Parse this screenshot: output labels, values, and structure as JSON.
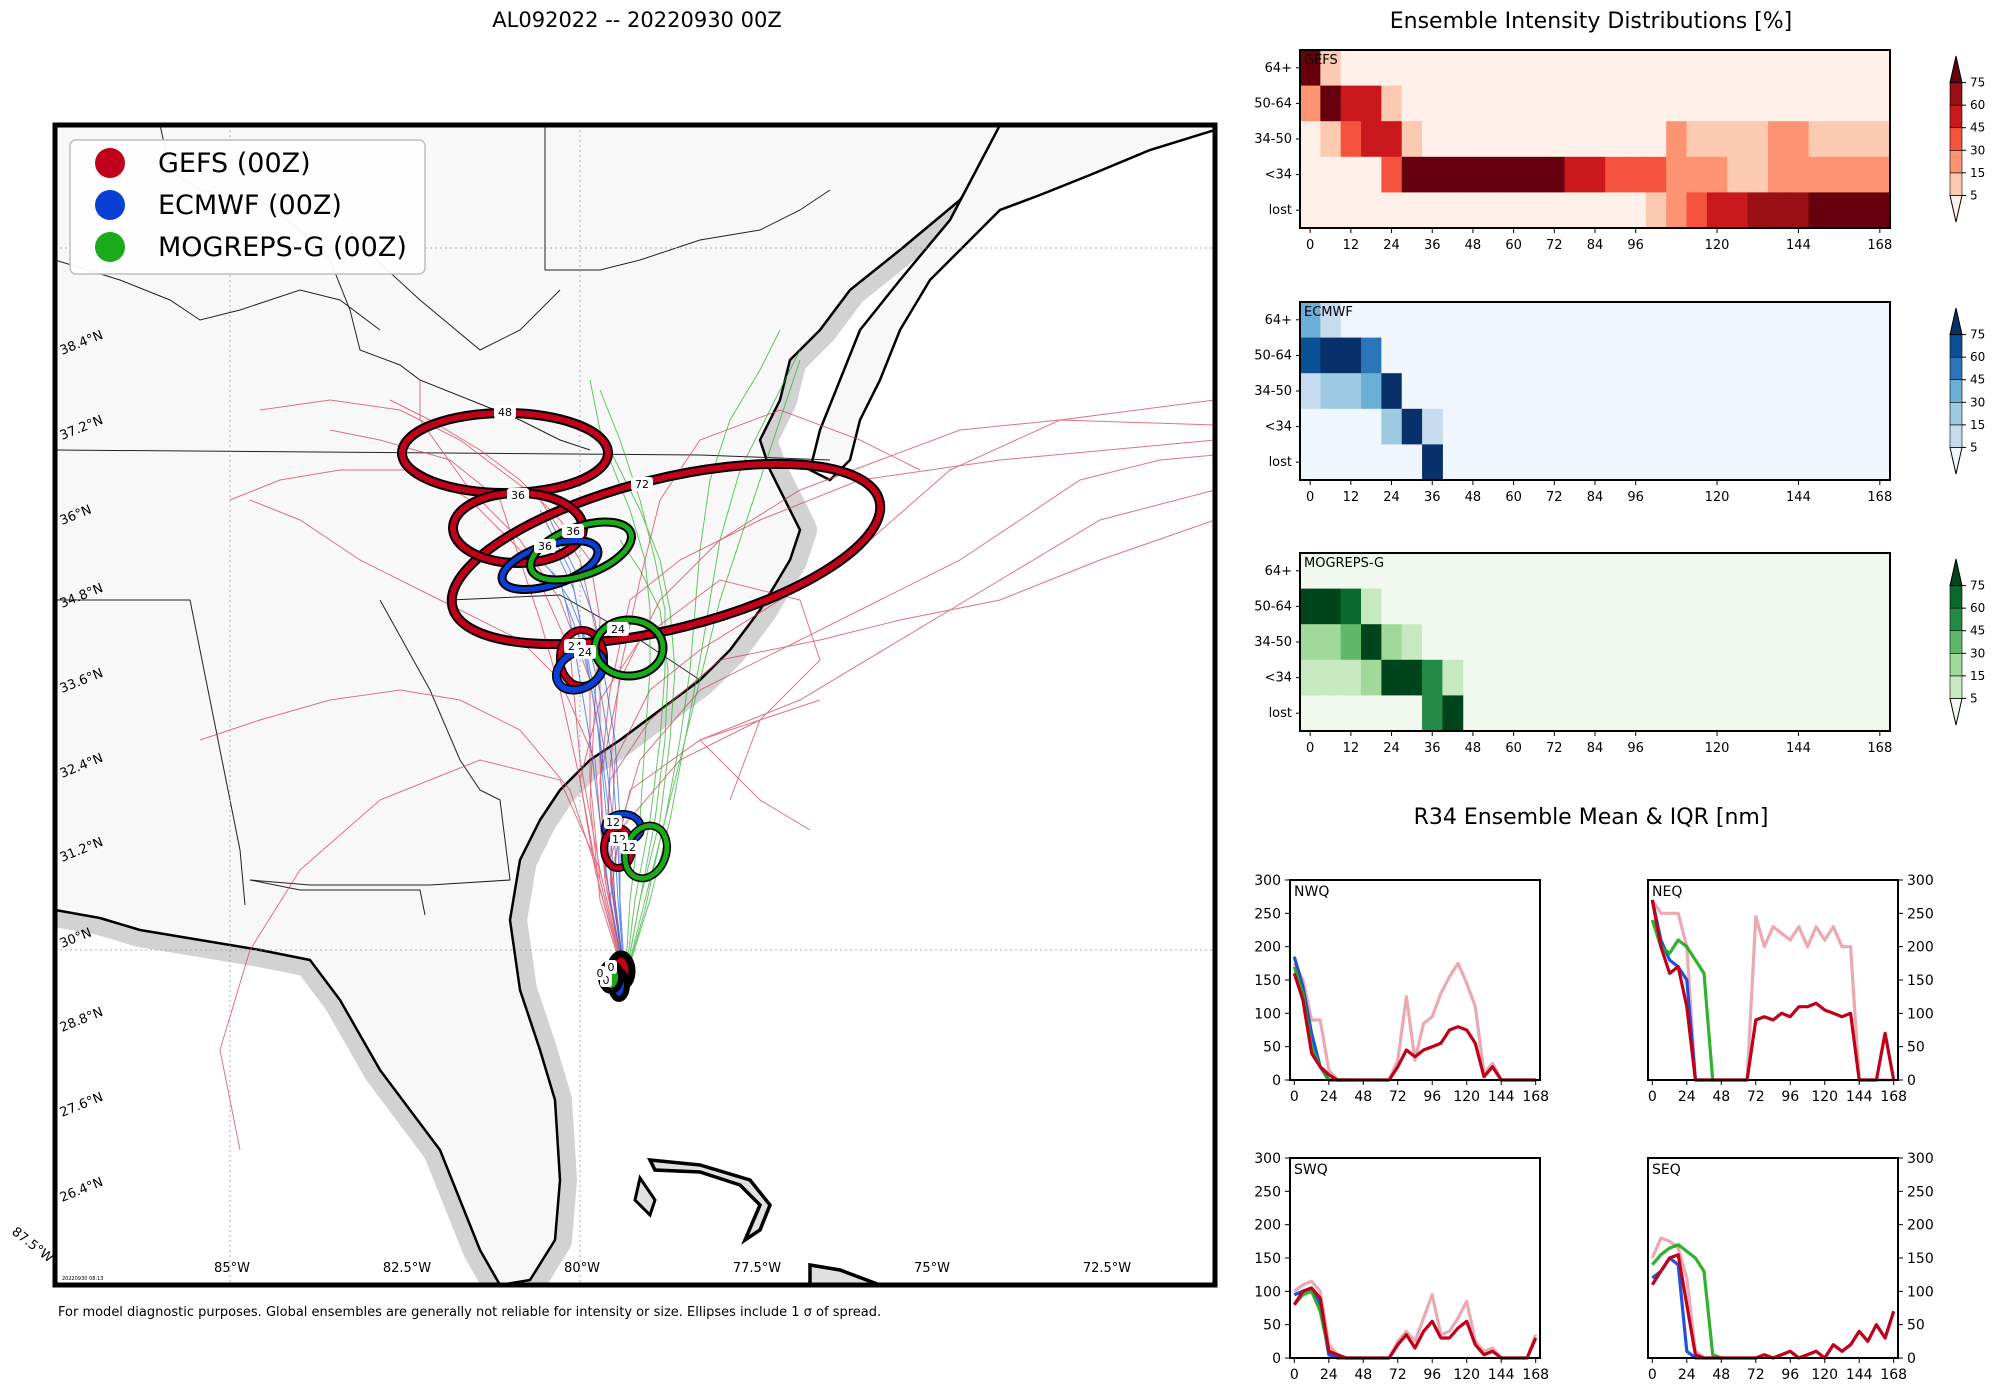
{
  "page": {
    "title": "AL092022 -- 20220930 00Z",
    "footnote": "For model diagnostic purposes. Global ensembles are generally not reliable for intensity or size. Ellipses include 1 σ of spread.",
    "map_timestamp": "20220930 08:13"
  },
  "colors": {
    "gefs": "#c0001a",
    "ecmwf": "#0a3fd6",
    "mogreps": "#1aaa1a",
    "land": "#f8f8f8",
    "ocean": "#ffffff",
    "coast_halo": "#c8c8c8"
  },
  "map": {
    "legend": [
      {
        "label": "GEFS (00Z)",
        "color": "#c0001a"
      },
      {
        "label": "ECMWF (00Z)",
        "color": "#0a3fd6"
      },
      {
        "label": "MOGREPS-G (00Z)",
        "color": "#1aaa1a"
      }
    ],
    "lat_labels": [
      "38.4°N",
      "37.2°N",
      "36°N",
      "34.8°N",
      "33.6°N",
      "32.4°N",
      "31.2°N",
      "30°N",
      "28.8°N",
      "27.6°N",
      "26.4°N"
    ],
    "lon_labels": [
      "87.5°W",
      "85°W",
      "82.5°W",
      "80°W",
      "77.5°W",
      "75°W",
      "72.5°W"
    ],
    "ellipses": [
      {
        "model": "gefs",
        "hour": "48"
      },
      {
        "model": "gefs",
        "hour": "72"
      },
      {
        "model": "gefs",
        "hour": "36"
      },
      {
        "model": "ecmwf",
        "hour": "36"
      },
      {
        "model": "mogreps",
        "hour": "36"
      },
      {
        "model": "gefs",
        "hour": "24"
      },
      {
        "model": "ecmwf",
        "hour": "24"
      },
      {
        "model": "mogreps",
        "hour": "24"
      },
      {
        "model": "ecmwf",
        "hour": "12"
      },
      {
        "model": "gefs",
        "hour": "12"
      },
      {
        "model": "mogreps",
        "hour": "12"
      },
      {
        "model": "gefs",
        "hour": "0"
      },
      {
        "model": "ecmwf",
        "hour": "0"
      },
      {
        "model": "mogreps",
        "hour": "0"
      }
    ]
  },
  "chart_data": [
    {
      "type": "heatmap",
      "title": "Ensemble Intensity Distributions [%]",
      "panel": "GEFS",
      "colormap": "Reds",
      "y_categories": [
        "64+",
        "50-64",
        "34-50",
        "<34",
        "lost"
      ],
      "x_ticks": [
        0,
        12,
        24,
        36,
        48,
        60,
        72,
        84,
        96,
        120,
        144,
        168
      ],
      "colorbar_ticks": [
        5,
        15,
        30,
        45,
        60,
        75
      ],
      "time_step": 6,
      "rows": {
        "64+": [
          80,
          6,
          0,
          0,
          0,
          0,
          0,
          0,
          0,
          0,
          0,
          0,
          0,
          0,
          0,
          0,
          0,
          0,
          0,
          0,
          0,
          0,
          0,
          0,
          0,
          0,
          0,
          0,
          0
        ],
        "50-64": [
          20,
          80,
          55,
          55,
          5,
          0,
          0,
          0,
          0,
          0,
          0,
          0,
          0,
          0,
          0,
          0,
          0,
          0,
          0,
          0,
          0,
          0,
          0,
          0,
          0,
          0,
          0,
          0,
          0
        ],
        "34-50": [
          0,
          12,
          35,
          45,
          55,
          10,
          0,
          0,
          0,
          0,
          0,
          0,
          0,
          0,
          0,
          0,
          0,
          0,
          20,
          12,
          12,
          12,
          12,
          18,
          18,
          12,
          12,
          12,
          12
        ],
        "<34": [
          0,
          0,
          0,
          0,
          40,
          75,
          80,
          80,
          80,
          80,
          80,
          80,
          80,
          45,
          50,
          40,
          35,
          35,
          25,
          25,
          25,
          12,
          12,
          25,
          25,
          25,
          25,
          18,
          18
        ],
        "lost": [
          0,
          0,
          0,
          0,
          0,
          0,
          0,
          0,
          0,
          0,
          0,
          0,
          0,
          0,
          0,
          0,
          0,
          12,
          25,
          40,
          45,
          55,
          60,
          62,
          70,
          75,
          80,
          80,
          80
        ]
      }
    },
    {
      "type": "heatmap",
      "panel": "ECMWF",
      "colormap": "Blues",
      "y_categories": [
        "64+",
        "50-64",
        "34-50",
        "<34",
        "lost"
      ],
      "x_ticks": [
        0,
        12,
        24,
        36,
        48,
        60,
        72,
        84,
        96,
        120,
        144,
        168
      ],
      "colorbar_ticks": [
        5,
        15,
        30,
        45,
        60,
        75
      ],
      "time_step": 6,
      "rows": {
        "64+": [
          35,
          5,
          0,
          0,
          0,
          0,
          0
        ],
        "50-64": [
          60,
          80,
          80,
          55,
          0,
          0,
          0
        ],
        "34-50": [
          10,
          15,
          15,
          35,
          80,
          0,
          0
        ],
        "<34": [
          0,
          0,
          0,
          0,
          15,
          80,
          10
        ],
        "lost": [
          0,
          0,
          0,
          0,
          0,
          0,
          80
        ]
      }
    },
    {
      "type": "heatmap",
      "panel": "MOGREPS-G",
      "colormap": "Greens",
      "y_categories": [
        "64+",
        "50-64",
        "34-50",
        "<34",
        "lost"
      ],
      "x_ticks": [
        0,
        12,
        24,
        36,
        48,
        60,
        72,
        84,
        96,
        120,
        144,
        168
      ],
      "colorbar_ticks": [
        5,
        15,
        30,
        45,
        60,
        75
      ],
      "time_step": 6,
      "rows": {
        "64+": [
          0,
          0,
          0,
          0,
          0,
          0,
          0,
          0
        ],
        "50-64": [
          80,
          80,
          60,
          5,
          0,
          0,
          0,
          0
        ],
        "34-50": [
          15,
          15,
          30,
          80,
          25,
          10,
          0,
          0
        ],
        "<34": [
          5,
          5,
          5,
          15,
          75,
          80,
          55,
          10
        ],
        "lost": [
          0,
          0,
          0,
          0,
          0,
          0,
          55,
          80
        ]
      }
    },
    {
      "type": "line",
      "title": "R34 Ensemble Mean & IQR [nm]",
      "panel": "NWQ",
      "ylim": [
        0,
        300
      ],
      "y_ticks": [
        0,
        50,
        100,
        150,
        200,
        250,
        300
      ],
      "x_ticks": [
        0,
        24,
        48,
        72,
        96,
        120,
        144,
        168
      ],
      "xlim": [
        -3,
        171
      ],
      "series": [
        {
          "name": "GEFS",
          "x": [
            0,
            6,
            12,
            18,
            24,
            30,
            36,
            42,
            48,
            54,
            60,
            66,
            72,
            78,
            84,
            90,
            96,
            102,
            108,
            114,
            120,
            126,
            132,
            138,
            144,
            150,
            156,
            162,
            168
          ],
          "values": [
            160,
            120,
            40,
            20,
            8,
            0,
            0,
            0,
            0,
            0,
            0,
            0,
            20,
            45,
            35,
            45,
            50,
            55,
            75,
            80,
            75,
            55,
            5,
            20,
            0,
            0,
            0,
            0,
            0
          ]
        },
        {
          "name": "GEFS IQR",
          "x": [
            0,
            6,
            12,
            18,
            24,
            30,
            36,
            42,
            48,
            54,
            60,
            66,
            72,
            78,
            84,
            90,
            96,
            102,
            108,
            114,
            120,
            126,
            132,
            138,
            144,
            150,
            156,
            162,
            168
          ],
          "values": [
            175,
            150,
            90,
            90,
            15,
            0,
            0,
            0,
            0,
            0,
            0,
            0,
            30,
            125,
            30,
            85,
            95,
            130,
            155,
            175,
            145,
            110,
            10,
            25,
            0,
            0,
            0,
            0,
            0
          ]
        },
        {
          "name": "ECMWF",
          "x": [
            0,
            6,
            12,
            18,
            24,
            30,
            36
          ],
          "values": [
            185,
            140,
            70,
            20,
            0,
            0,
            0
          ]
        },
        {
          "name": "MOGREPS-G",
          "x": [
            0,
            6,
            12,
            18,
            24,
            30,
            36,
            42
          ],
          "values": [
            170,
            130,
            50,
            20,
            0,
            0,
            0,
            0
          ]
        }
      ]
    },
    {
      "type": "line",
      "panel": "NEQ",
      "ylim": [
        0,
        300
      ],
      "y_ticks": [
        0,
        50,
        100,
        150,
        200,
        250,
        300
      ],
      "x_ticks": [
        0,
        24,
        48,
        72,
        96,
        120,
        144,
        168
      ],
      "xlim": [
        -3,
        171
      ],
      "series": [
        {
          "name": "GEFS",
          "x": [
            0,
            6,
            12,
            18,
            24,
            30,
            36,
            42,
            48,
            54,
            60,
            66,
            72,
            78,
            84,
            90,
            96,
            102,
            108,
            114,
            120,
            126,
            132,
            138,
            144,
            150,
            156,
            162,
            168
          ],
          "values": [
            270,
            200,
            160,
            170,
            110,
            0,
            0,
            0,
            0,
            0,
            0,
            0,
            90,
            95,
            90,
            100,
            95,
            110,
            110,
            115,
            105,
            100,
            95,
            100,
            0,
            0,
            0,
            70,
            0
          ]
        },
        {
          "name": "GEFS IQR",
          "x": [
            0,
            6,
            12,
            18,
            24,
            30,
            36,
            42,
            48,
            54,
            60,
            66,
            72,
            78,
            84,
            90,
            96,
            102,
            108,
            114,
            120,
            126,
            132,
            138,
            144,
            150,
            156,
            162,
            168
          ],
          "values": [
            270,
            250,
            250,
            250,
            200,
            0,
            0,
            0,
            0,
            0,
            0,
            0,
            245,
            200,
            230,
            220,
            210,
            230,
            200,
            230,
            210,
            230,
            200,
            200,
            0,
            0,
            0,
            0,
            0
          ]
        },
        {
          "name": "ECMWF",
          "x": [
            0,
            6,
            12,
            18,
            24,
            30,
            36
          ],
          "values": [
            270,
            210,
            180,
            170,
            150,
            0,
            0
          ]
        },
        {
          "name": "MOGREPS-G",
          "x": [
            0,
            6,
            12,
            18,
            24,
            30,
            36,
            42,
            48
          ],
          "values": [
            240,
            200,
            190,
            210,
            200,
            180,
            160,
            0,
            0
          ]
        }
      ]
    },
    {
      "type": "line",
      "panel": "SWQ",
      "ylim": [
        0,
        300
      ],
      "y_ticks": [
        0,
        50,
        100,
        150,
        200,
        250,
        300
      ],
      "x_ticks": [
        0,
        24,
        48,
        72,
        96,
        120,
        144,
        168
      ],
      "xlim": [
        -3,
        171
      ],
      "series": [
        {
          "name": "GEFS",
          "x": [
            0,
            6,
            12,
            18,
            24,
            30,
            36,
            42,
            48,
            54,
            60,
            66,
            72,
            78,
            84,
            90,
            96,
            102,
            108,
            114,
            120,
            126,
            132,
            138,
            144,
            150,
            156,
            162,
            168
          ],
          "values": [
            80,
            100,
            105,
            90,
            10,
            5,
            0,
            0,
            0,
            0,
            0,
            0,
            20,
            35,
            15,
            40,
            55,
            30,
            30,
            45,
            55,
            20,
            5,
            10,
            0,
            0,
            0,
            0,
            30
          ]
        },
        {
          "name": "GEFS IQR",
          "x": [
            0,
            6,
            12,
            18,
            24,
            30,
            36,
            42,
            48,
            54,
            60,
            66,
            72,
            78,
            84,
            90,
            96,
            102,
            108,
            114,
            120,
            126,
            132,
            138,
            144,
            150,
            156,
            162,
            168
          ],
          "values": [
            100,
            110,
            115,
            100,
            20,
            5,
            0,
            0,
            0,
            0,
            0,
            0,
            25,
            40,
            25,
            60,
            95,
            35,
            40,
            60,
            85,
            25,
            10,
            15,
            0,
            0,
            0,
            0,
            35
          ]
        },
        {
          "name": "ECMWF",
          "x": [
            0,
            6,
            12,
            18,
            24,
            30,
            36
          ],
          "values": [
            95,
            100,
            105,
            80,
            5,
            0,
            0
          ]
        },
        {
          "name": "MOGREPS-G",
          "x": [
            0,
            6,
            12,
            18,
            24,
            30,
            36,
            42,
            48
          ],
          "values": [
            80,
            95,
            100,
            70,
            10,
            5,
            0,
            0,
            0
          ]
        }
      ]
    },
    {
      "type": "line",
      "panel": "SEQ",
      "ylim": [
        0,
        300
      ],
      "y_ticks": [
        0,
        50,
        100,
        150,
        200,
        250,
        300
      ],
      "x_ticks": [
        0,
        24,
        48,
        72,
        96,
        120,
        144,
        168
      ],
      "xlim": [
        -3,
        171
      ],
      "series": [
        {
          "name": "GEFS",
          "x": [
            0,
            6,
            12,
            18,
            24,
            30,
            36,
            42,
            48,
            54,
            60,
            66,
            72,
            78,
            84,
            90,
            96,
            102,
            108,
            114,
            120,
            126,
            132,
            138,
            144,
            150,
            156,
            162,
            168
          ],
          "values": [
            110,
            130,
            150,
            155,
            80,
            5,
            0,
            0,
            0,
            0,
            0,
            0,
            0,
            5,
            0,
            5,
            10,
            0,
            5,
            10,
            0,
            20,
            10,
            20,
            40,
            25,
            50,
            30,
            70
          ]
        },
        {
          "name": "GEFS IQR",
          "x": [
            0,
            6,
            12,
            18,
            24,
            30,
            36,
            42,
            48,
            54,
            60,
            66,
            72,
            78,
            84,
            90,
            96,
            102,
            108,
            114,
            120,
            126,
            132,
            138,
            144,
            150,
            156,
            162,
            168
          ],
          "values": [
            150,
            180,
            175,
            165,
            120,
            10,
            0,
            0,
            0,
            0,
            0,
            0,
            0,
            5,
            0,
            5,
            10,
            0,
            5,
            10,
            0,
            20,
            10,
            20,
            40,
            25,
            50,
            30,
            70
          ]
        },
        {
          "name": "ECMWF",
          "x": [
            0,
            6,
            12,
            18,
            24,
            30,
            36
          ],
          "values": [
            120,
            130,
            150,
            140,
            10,
            0,
            0
          ]
        },
        {
          "name": "MOGREPS-G",
          "x": [
            0,
            6,
            12,
            18,
            24,
            30,
            36,
            42,
            48
          ],
          "values": [
            140,
            155,
            165,
            170,
            160,
            150,
            130,
            5,
            0
          ]
        }
      ]
    }
  ]
}
